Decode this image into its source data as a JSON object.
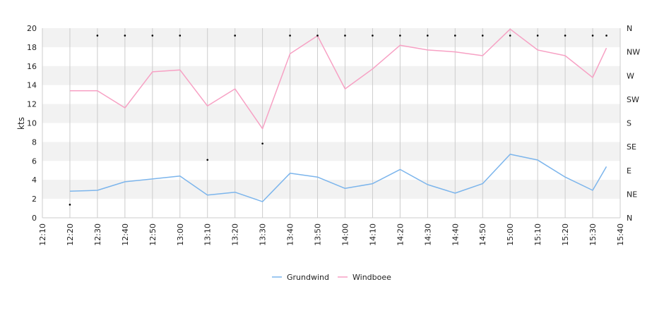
{
  "chart_data": {
    "type": "line",
    "xlabel": "",
    "ylabel": "kts",
    "x": [
      "12:20",
      "12:30",
      "12:40",
      "12:50",
      "13:00",
      "13:10",
      "13:20",
      "13:30",
      "13:40",
      "13:50",
      "14:00",
      "14:10",
      "14:20",
      "14:30",
      "14:40",
      "14:50",
      "15:00",
      "15:10",
      "15:20",
      "15:30",
      "15:35"
    ],
    "xticks": [
      "12:10",
      "12:20",
      "12:30",
      "12:40",
      "12:50",
      "13:00",
      "13:10",
      "13:20",
      "13:30",
      "13:40",
      "13:50",
      "14:00",
      "14:10",
      "14:20",
      "14:30",
      "14:40",
      "14:50",
      "15:00",
      "15:10",
      "15:20",
      "15:30",
      "15:40"
    ],
    "xlim": [
      "12:10",
      "15:40"
    ],
    "ylim": [
      0,
      20
    ],
    "yticks": [
      0,
      2,
      4,
      6,
      8,
      10,
      12,
      14,
      16,
      18,
      20
    ],
    "right_axis": {
      "labels": [
        "N",
        "NE",
        "E",
        "SE",
        "S",
        "SW",
        "W",
        "NW",
        "N"
      ],
      "range": [
        0,
        360
      ]
    },
    "grid": true,
    "legend_position": "bottom-center",
    "series": [
      {
        "name": "Grundwind",
        "color": "#7cb5ec",
        "values": [
          2.8,
          2.9,
          3.8,
          4.1,
          4.4,
          2.4,
          2.7,
          1.7,
          4.7,
          4.3,
          3.1,
          3.6,
          5.1,
          3.5,
          2.6,
          3.6,
          6.7,
          6.1,
          4.3,
          2.9,
          5.4
        ]
      },
      {
        "name": "Windboee",
        "color": "#f7a1c4",
        "values": [
          13.4,
          13.4,
          11.6,
          15.4,
          15.6,
          11.8,
          13.6,
          9.4,
          17.3,
          19.2,
          13.6,
          15.7,
          18.2,
          17.7,
          17.5,
          17.1,
          19.9,
          17.7,
          17.1,
          14.8,
          17.9
        ]
      }
    ],
    "direction_markers": {
      "x": [
        "12:20",
        "12:30",
        "12:40",
        "12:50",
        "13:00",
        "13:10",
        "13:20",
        "13:30",
        "13:40",
        "13:50",
        "14:00",
        "14:10",
        "14:20",
        "14:30",
        "14:40",
        "14:50",
        "15:00",
        "15:10",
        "15:20",
        "15:30",
        "15:35"
      ],
      "degrees": [
        25,
        346,
        346,
        346,
        346,
        110,
        346,
        141,
        346,
        346,
        346,
        346,
        346,
        346,
        346,
        346,
        346,
        346,
        346,
        346,
        346
      ]
    }
  }
}
